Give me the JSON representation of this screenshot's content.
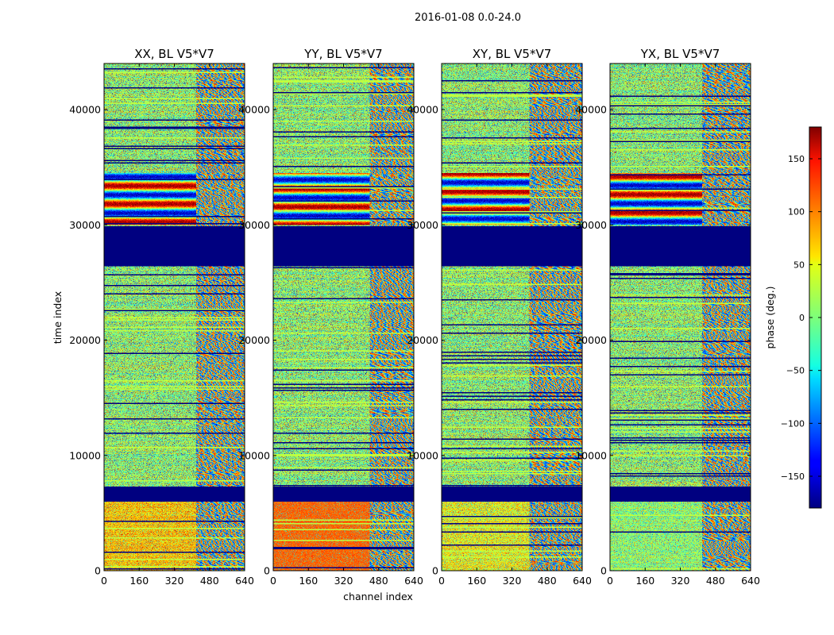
{
  "chart_data": {
    "type": "heatmap",
    "suptitle": "2016-01-08 0.0-24.0",
    "xlabel": "channel index",
    "ylabel": "time index",
    "xlim": [
      0,
      640
    ],
    "ylim": [
      0,
      44000
    ],
    "xticks": [
      0,
      160,
      320,
      480,
      640
    ],
    "yticks": [
      0,
      10000,
      20000,
      30000,
      40000
    ],
    "colorbar": {
      "label": "phase (deg.)",
      "range": [
        -180,
        180
      ],
      "ticks": [
        150,
        100,
        50,
        0,
        -50,
        -100,
        -150
      ],
      "tick_labels": [
        "150",
        "100",
        "50",
        "0",
        "−50",
        "−100",
        "−150"
      ],
      "colormap": "jet"
    },
    "panels": [
      {
        "title": "XX, BL V5*V7",
        "show_ylabel": true,
        "show_xlabel": false
      },
      {
        "title": "YY, BL V5*V7",
        "show_ylabel": false,
        "show_xlabel": true
      },
      {
        "title": "XY, BL V5*V7",
        "show_ylabel": false,
        "show_xlabel": false
      },
      {
        "title": "YX, BL V5*V7",
        "show_ylabel": false,
        "show_xlabel": false
      }
    ],
    "empty_time_ranges": [
      [
        6000,
        7300
      ],
      [
        26400,
        29900
      ]
    ]
  }
}
